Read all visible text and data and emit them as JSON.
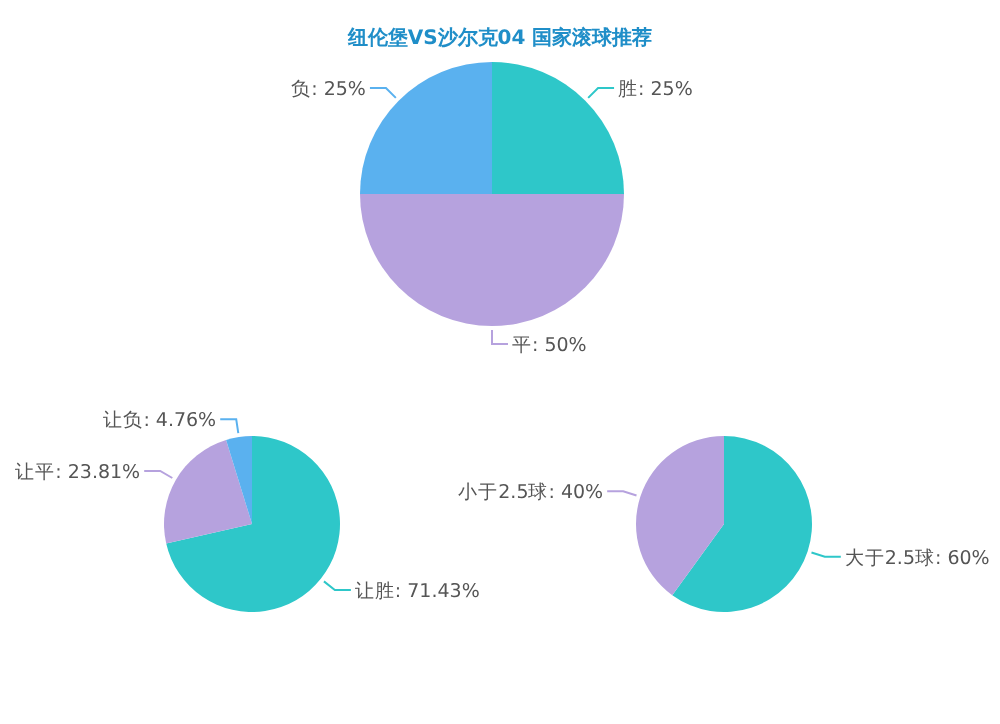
{
  "chart_data": [
    {
      "type": "pie",
      "title": "纽伦堡VS沙尔克04 国家滚球推荐",
      "categories": [
        "胜",
        "平",
        "负"
      ],
      "values": [
        25,
        50,
        25
      ],
      "value_labels": [
        "25%",
        "50%",
        "25%"
      ],
      "colors": [
        "#2ec7c9",
        "#b6a2de",
        "#5ab1ef"
      ]
    },
    {
      "type": "pie",
      "categories": [
        "让胜",
        "让平",
        "让负"
      ],
      "values": [
        71.43,
        23.81,
        4.76
      ],
      "value_labels": [
        "71.43%",
        "23.81%",
        "4.76%"
      ],
      "colors": [
        "#2ec7c9",
        "#b6a2de",
        "#5ab1ef"
      ]
    },
    {
      "type": "pie",
      "categories": [
        "大于2.5球",
        "小于2.5球"
      ],
      "values": [
        60,
        40
      ],
      "value_labels": [
        "60%",
        "40%"
      ],
      "colors": [
        "#2ec7c9",
        "#b6a2de"
      ]
    }
  ]
}
